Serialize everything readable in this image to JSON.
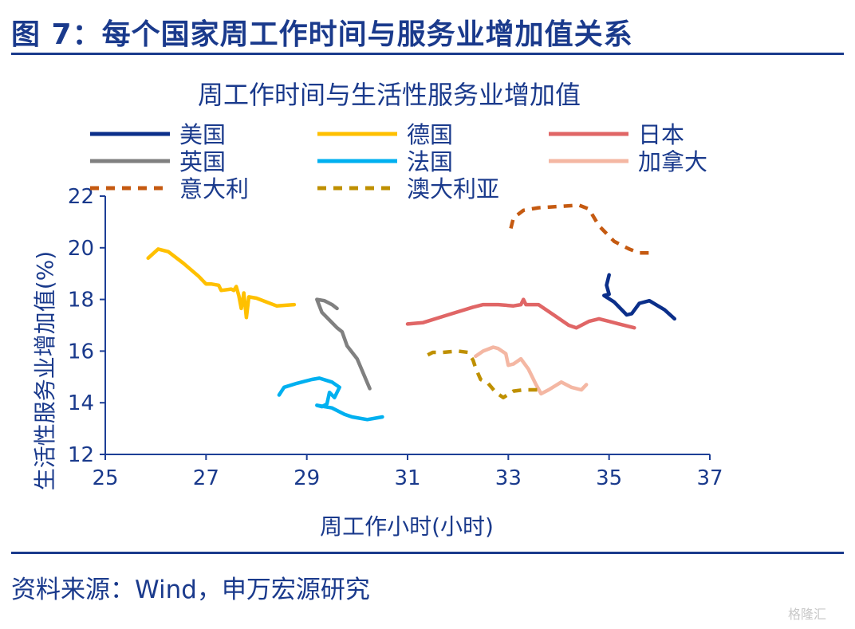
{
  "figure_title": "图 7：每个国家周工作时间与服务业增加值关系",
  "source_note": "资料来源：Wind，申万宏源研究",
  "watermark": "格隆汇",
  "colors": {
    "brand": "#1a3a8c",
    "axis": "#1e3f96"
  },
  "chart_data": {
    "type": "line",
    "title": "周工作时间与生活性服务业增加值",
    "xlabel": "周工作小时(小时)",
    "ylabel": "生活性服务业增加值(%)",
    "xlim": [
      25,
      37
    ],
    "ylim": [
      12,
      22
    ],
    "xticks": [
      25,
      27,
      29,
      31,
      33,
      35,
      37
    ],
    "yticks": [
      12,
      14,
      16,
      18,
      20,
      22
    ],
    "grid": false,
    "legend_position": "top",
    "series": [
      {
        "name": "美国",
        "color": "#0b2f8a",
        "dash": "solid",
        "points": [
          [
            35.0,
            18.95
          ],
          [
            34.95,
            18.55
          ],
          [
            35.0,
            18.2
          ],
          [
            34.9,
            18.15
          ],
          [
            35.1,
            17.9
          ],
          [
            35.35,
            17.4
          ],
          [
            35.45,
            17.45
          ],
          [
            35.6,
            17.85
          ],
          [
            35.8,
            17.95
          ],
          [
            36.1,
            17.6
          ],
          [
            36.3,
            17.25
          ]
        ]
      },
      {
        "name": "德国",
        "color": "#ffc000",
        "dash": "solid",
        "points": [
          [
            25.85,
            19.6
          ],
          [
            26.05,
            19.95
          ],
          [
            26.25,
            19.85
          ],
          [
            26.55,
            19.4
          ],
          [
            26.85,
            18.9
          ],
          [
            27.0,
            18.6
          ],
          [
            27.1,
            18.6
          ],
          [
            27.25,
            18.55
          ],
          [
            27.3,
            18.35
          ],
          [
            27.5,
            18.4
          ],
          [
            27.55,
            18.35
          ],
          [
            27.6,
            18.5
          ],
          [
            27.65,
            18.15
          ],
          [
            27.7,
            17.65
          ],
          [
            27.75,
            18.25
          ],
          [
            27.8,
            17.3
          ],
          [
            27.85,
            18.1
          ],
          [
            28.0,
            18.05
          ],
          [
            28.4,
            17.75
          ],
          [
            28.75,
            17.8
          ]
        ]
      },
      {
        "name": "日本",
        "color": "#e06666",
        "dash": "solid",
        "points": [
          [
            31.0,
            17.05
          ],
          [
            31.3,
            17.1
          ],
          [
            31.8,
            17.4
          ],
          [
            32.3,
            17.7
          ],
          [
            32.5,
            17.8
          ],
          [
            32.8,
            17.8
          ],
          [
            33.1,
            17.75
          ],
          [
            33.25,
            17.8
          ],
          [
            33.3,
            18.0
          ],
          [
            33.35,
            17.8
          ],
          [
            33.6,
            17.8
          ],
          [
            33.9,
            17.4
          ],
          [
            34.2,
            17.0
          ],
          [
            34.35,
            16.9
          ],
          [
            34.6,
            17.15
          ],
          [
            34.8,
            17.25
          ],
          [
            35.2,
            17.05
          ],
          [
            35.5,
            16.9
          ]
        ]
      },
      {
        "name": "英国",
        "color": "#808080",
        "dash": "solid",
        "points": [
          [
            29.6,
            17.65
          ],
          [
            29.5,
            17.8
          ],
          [
            29.35,
            17.95
          ],
          [
            29.2,
            18.0
          ],
          [
            29.3,
            17.5
          ],
          [
            29.45,
            17.2
          ],
          [
            29.6,
            16.9
          ],
          [
            29.7,
            16.75
          ],
          [
            29.8,
            16.2
          ],
          [
            30.0,
            15.7
          ],
          [
            30.25,
            14.55
          ]
        ]
      },
      {
        "name": "法国",
        "color": "#00b0f0",
        "dash": "solid",
        "points": [
          [
            28.45,
            14.3
          ],
          [
            28.55,
            14.6
          ],
          [
            28.8,
            14.75
          ],
          [
            29.1,
            14.9
          ],
          [
            29.25,
            14.95
          ],
          [
            29.5,
            14.8
          ],
          [
            29.65,
            14.6
          ],
          [
            29.55,
            14.2
          ],
          [
            29.45,
            14.4
          ],
          [
            29.4,
            13.95
          ],
          [
            29.3,
            13.85
          ],
          [
            29.2,
            13.9
          ],
          [
            29.5,
            13.8
          ],
          [
            29.75,
            13.55
          ],
          [
            29.9,
            13.45
          ],
          [
            30.2,
            13.35
          ],
          [
            30.5,
            13.45
          ]
        ]
      },
      {
        "name": "加拿大",
        "color": "#f4b7a3",
        "dash": "solid",
        "points": [
          [
            32.35,
            15.8
          ],
          [
            32.5,
            16.0
          ],
          [
            32.7,
            16.15
          ],
          [
            32.8,
            16.1
          ],
          [
            32.95,
            15.9
          ],
          [
            33.0,
            15.45
          ],
          [
            33.1,
            15.5
          ],
          [
            33.25,
            15.7
          ],
          [
            33.4,
            15.3
          ],
          [
            33.55,
            14.7
          ],
          [
            33.65,
            14.35
          ],
          [
            33.8,
            14.5
          ],
          [
            34.05,
            14.8
          ],
          [
            34.25,
            14.6
          ],
          [
            34.45,
            14.5
          ],
          [
            34.55,
            14.7
          ]
        ]
      },
      {
        "name": "意大利",
        "color": "#c55a11",
        "dash": "dash",
        "points": [
          [
            33.05,
            20.75
          ],
          [
            33.1,
            21.15
          ],
          [
            33.3,
            21.45
          ],
          [
            33.6,
            21.55
          ],
          [
            34.0,
            21.6
          ],
          [
            34.4,
            21.65
          ],
          [
            34.6,
            21.5
          ],
          [
            34.8,
            20.85
          ],
          [
            35.1,
            20.25
          ],
          [
            35.4,
            19.95
          ],
          [
            35.6,
            19.8
          ],
          [
            35.9,
            19.8
          ]
        ]
      },
      {
        "name": "澳大利亚",
        "color": "#bf9000",
        "dash": "dash",
        "points": [
          [
            31.4,
            15.85
          ],
          [
            31.5,
            15.95
          ],
          [
            31.7,
            15.95
          ],
          [
            32.0,
            16.0
          ],
          [
            32.2,
            15.95
          ],
          [
            32.3,
            15.65
          ],
          [
            32.35,
            15.35
          ],
          [
            32.45,
            14.9
          ],
          [
            32.6,
            14.75
          ],
          [
            32.75,
            14.4
          ],
          [
            32.9,
            14.2
          ],
          [
            33.1,
            14.45
          ],
          [
            33.3,
            14.5
          ],
          [
            33.5,
            14.5
          ],
          [
            33.6,
            14.5
          ]
        ]
      }
    ]
  }
}
